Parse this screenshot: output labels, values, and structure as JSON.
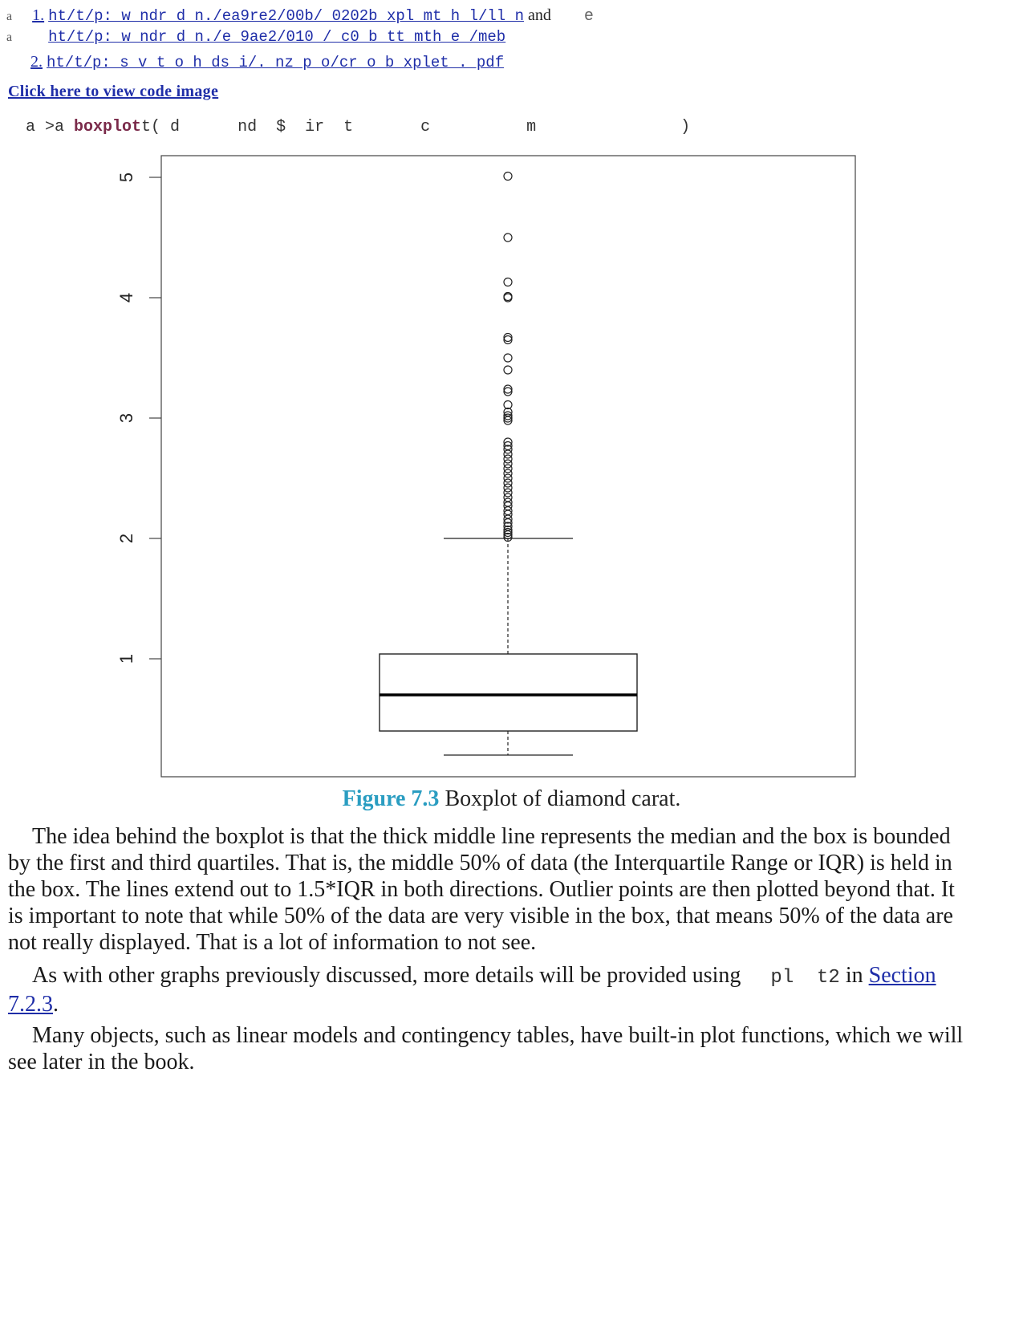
{
  "footnotes": [
    {
      "marker": "a",
      "number": "1.",
      "url": "ht/t/p: w   ndr      d   n./ea9re2/00b/ 0202b xpl mt    h  l/ll  n",
      "trailing_text": "and",
      "trailing_end": "e"
    },
    {
      "marker": "a",
      "number": "",
      "url": "ht/t/p: w   ndr      d   n./e  9ae2/010 / c0  b  tt  mth  e /meb"
    },
    {
      "marker": "",
      "number": "2.",
      "url": "ht/t/p:  s  v  t  o  h  ds   i/. nz  p o/cr o  b  xplet  . pdf"
    }
  ],
  "code": {
    "link_label": "Click here to view code image",
    "prompt": "a >a",
    "function": "boxplot",
    "args": "t( d      nd  $  ir  t       c          m               )"
  },
  "figure": {
    "label": "Figure 7.3",
    "caption": "Boxplot of diamond carat."
  },
  "paragraphs": {
    "p1": "The idea behind the boxplot is that the thick middle line represents the median and the box is bounded by the first and third quartiles. That is, the middle 50% of data (the Interquartile Range or IQR) is held in the box. The lines extend out to 1.5*IQR in both directions. Outlier points are then plotted beyond that. It is important to note that while 50% of the data are very visible in the box, that means 50% of the data are not really displayed. That is a lot of information to not see.",
    "p2_before": "As with other graphs previously discussed, more details will be provided using",
    "p2_code": "pl  t2",
    "p2_mid": "in",
    "p2_link": "Section 7.2.3",
    "p2_end": ".",
    "p3": "Many objects, such as linear models and contingency tables, have built-in plot functions, which we will see later in the book."
  },
  "chart_data": {
    "type": "boxplot",
    "title": "",
    "xlabel": "",
    "ylabel": "",
    "ylim": [
      0.1,
      5.2
    ],
    "yticks": [
      1,
      2,
      3,
      4,
      5
    ],
    "series": [
      {
        "whisker_low": 0.2,
        "q1": 0.4,
        "median": 0.7,
        "q3": 1.04,
        "whisker_high": 2.0,
        "outliers": [
          2.01,
          2.03,
          2.05,
          2.07,
          2.1,
          2.13,
          2.16,
          2.2,
          2.23,
          2.27,
          2.3,
          2.34,
          2.38,
          2.42,
          2.46,
          2.5,
          2.54,
          2.58,
          2.62,
          2.66,
          2.7,
          2.74,
          2.77,
          2.8,
          2.98,
          3.0,
          3.02,
          3.05,
          3.11,
          3.22,
          3.24,
          3.4,
          3.5,
          3.65,
          3.67,
          4.0,
          4.01,
          4.13,
          4.5,
          5.01
        ]
      }
    ]
  }
}
